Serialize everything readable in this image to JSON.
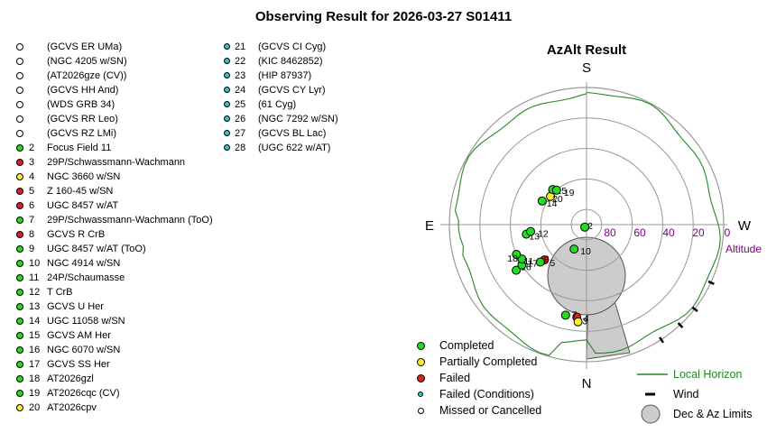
{
  "title": "Observing Result for 2026-03-27  S01411",
  "colors": {
    "completed": "#22dd22",
    "partial": "#ffee22",
    "failed": "#dd2222",
    "failed_conditions": "#33c6c6",
    "missed": "#ffffff",
    "horizon": "#228822",
    "altitude_text": "#800080",
    "limit_fill": "#cccccc"
  },
  "targets_col1": [
    {
      "num": "",
      "name": "(GCVS ER UMa)",
      "status": "missed"
    },
    {
      "num": "",
      "name": "(NGC 4205 w/SN)",
      "status": "missed"
    },
    {
      "num": "",
      "name": "(AT2026gze (CV))",
      "status": "missed"
    },
    {
      "num": "",
      "name": "(GCVS HH And)",
      "status": "missed"
    },
    {
      "num": "",
      "name": "(WDS GRB 34)",
      "status": "missed"
    },
    {
      "num": "",
      "name": "(GCVS RR Leo)",
      "status": "missed"
    },
    {
      "num": "",
      "name": "(GCVS RZ LMi)",
      "status": "missed"
    },
    {
      "num": "2",
      "name": "Focus Field 11",
      "status": "completed"
    },
    {
      "num": "3",
      "name": "29P/Schwassmann-Wachmann",
      "status": "failed"
    },
    {
      "num": "4",
      "name": "NGC 3660 w/SN",
      "status": "partial"
    },
    {
      "num": "5",
      "name": "Z 160-45 w/SN",
      "status": "failed"
    },
    {
      "num": "6",
      "name": "UGC 8457 w/AT",
      "status": "failed"
    },
    {
      "num": "7",
      "name": "29P/Schwassmann-Wachmann (ToO)",
      "status": "completed"
    },
    {
      "num": "8",
      "name": "GCVS R CrB",
      "status": "failed"
    },
    {
      "num": "9",
      "name": "UGC 8457 w/AT (ToO)",
      "status": "completed"
    },
    {
      "num": "10",
      "name": "NGC 4914 w/SN",
      "status": "completed"
    },
    {
      "num": "11",
      "name": "24P/Schaumasse",
      "status": "completed"
    },
    {
      "num": "12",
      "name": "T CrB",
      "status": "completed"
    },
    {
      "num": "13",
      "name": "GCVS U Her",
      "status": "completed"
    },
    {
      "num": "14",
      "name": "UGC 11058 w/SN",
      "status": "completed"
    },
    {
      "num": "15",
      "name": "GCVS AM Her",
      "status": "completed"
    },
    {
      "num": "16",
      "name": "NGC 6070 w/SN",
      "status": "completed"
    },
    {
      "num": "17",
      "name": "GCVS SS Her",
      "status": "completed"
    },
    {
      "num": "18",
      "name": "AT2026gzl",
      "status": "completed"
    },
    {
      "num": "19",
      "name": "AT2026cqc (CV)",
      "status": "completed"
    },
    {
      "num": "20",
      "name": "AT2026cpv",
      "status": "partial"
    }
  ],
  "targets_col2": [
    {
      "num": "21",
      "name": "(GCVS CI Cyg)",
      "status": "failed_conditions"
    },
    {
      "num": "22",
      "name": "(KIC 8462852)",
      "status": "failed_conditions"
    },
    {
      "num": "23",
      "name": "(HIP 87937)",
      "status": "failed_conditions"
    },
    {
      "num": "24",
      "name": "(GCVS CY Lyr)",
      "status": "failed_conditions"
    },
    {
      "num": "25",
      "name": "(61 Cyg)",
      "status": "failed_conditions"
    },
    {
      "num": "26",
      "name": "(NGC 7292 w/SN)",
      "status": "failed_conditions"
    },
    {
      "num": "27",
      "name": "(GCVS BL Lac)",
      "status": "failed_conditions"
    },
    {
      "num": "28",
      "name": "(UGC 622 w/AT)",
      "status": "failed_conditions"
    }
  ],
  "legend": {
    "completed": "Completed",
    "partial": "Partially Completed",
    "failed": "Failed",
    "failed_conditions": "Failed (Conditions)",
    "missed": "Missed or Cancelled",
    "horizon": "Local Horizon",
    "wind": "Wind",
    "limits": "Dec & Az Limits"
  },
  "chart_data": {
    "type": "scatter",
    "projection": "polar-azalt",
    "title": "AzAlt Result",
    "directions": {
      "top": "S",
      "bottom": "N",
      "left": "E",
      "right": "W"
    },
    "radial_axis": {
      "label": "Altitude",
      "ticks": [
        "80",
        "60",
        "40",
        "20",
        "0"
      ],
      "rings_deg": [
        80,
        60,
        40,
        20,
        0
      ]
    },
    "points": [
      {
        "label": "2",
        "az": 145,
        "alt": 88,
        "status": "completed"
      },
      {
        "label": "3",
        "az": 174,
        "alt": 29,
        "status": "failed"
      },
      {
        "label": "4",
        "az": 175,
        "alt": 26,
        "status": "partial"
      },
      {
        "label": "7",
        "az": 167,
        "alt": 29,
        "status": "completed"
      },
      {
        "label": "5",
        "az": 130,
        "alt": 54,
        "status": "failed"
      },
      {
        "label": "9",
        "az": 129,
        "alt": 51,
        "status": "completed"
      },
      {
        "label": "10",
        "az": 153,
        "alt": 72,
        "status": "completed"
      },
      {
        "label": "16",
        "az": 123,
        "alt": 35,
        "status": "completed"
      },
      {
        "label": "17",
        "az": 122,
        "alt": 40,
        "status": "completed"
      },
      {
        "label": "11",
        "az": 118,
        "alt": 42,
        "status": "completed"
      },
      {
        "label": "18",
        "az": 113,
        "alt": 40,
        "status": "completed"
      },
      {
        "label": "13",
        "az": 99,
        "alt": 50,
        "status": "completed"
      },
      {
        "label": "12",
        "az": 97,
        "alt": 53,
        "status": "completed"
      },
      {
        "label": "14",
        "az": 62,
        "alt": 57,
        "status": "completed"
      },
      {
        "label": "20",
        "az": 52,
        "alt": 60,
        "status": "partial"
      },
      {
        "label": "15",
        "az": 44,
        "alt": 58,
        "status": "completed"
      },
      {
        "label": "19",
        "az": 41,
        "alt": 60,
        "status": "completed"
      }
    ],
    "wind_marks_az": [
      213,
      223,
      232,
      245
    ]
  }
}
